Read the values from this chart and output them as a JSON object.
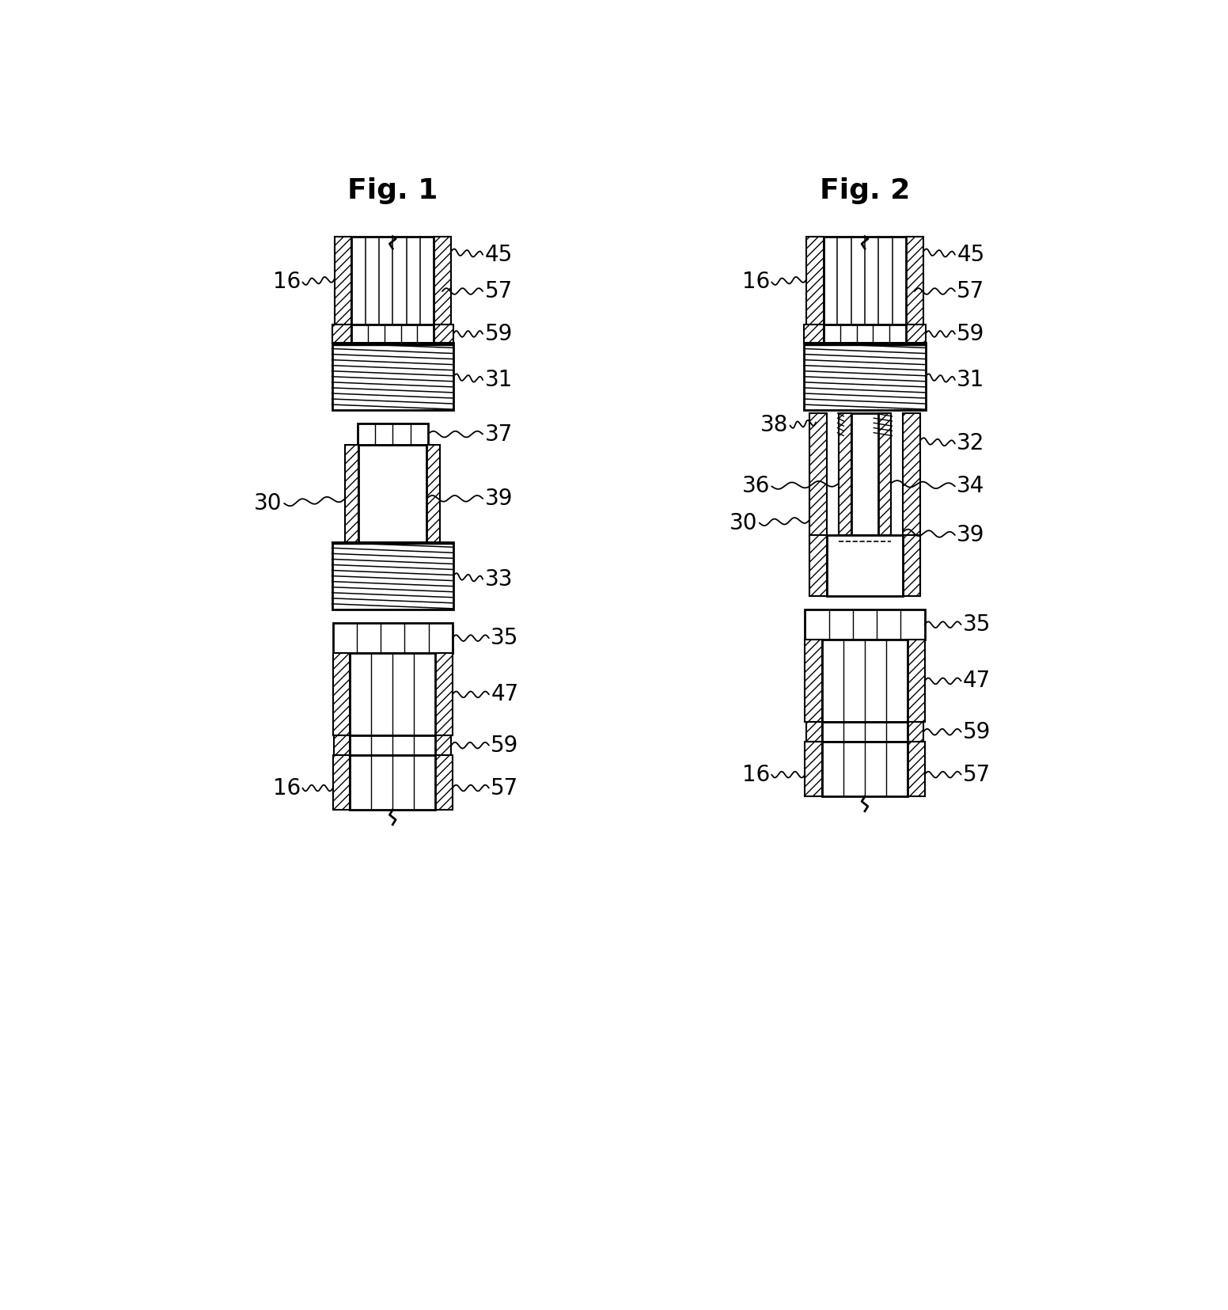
{
  "fig_title_1": "Fig. 1",
  "fig_title_2": "Fig. 2",
  "title_fontsize": 26,
  "label_fontsize": 20,
  "background_color": "#ffffff",
  "line_color": "#000000"
}
